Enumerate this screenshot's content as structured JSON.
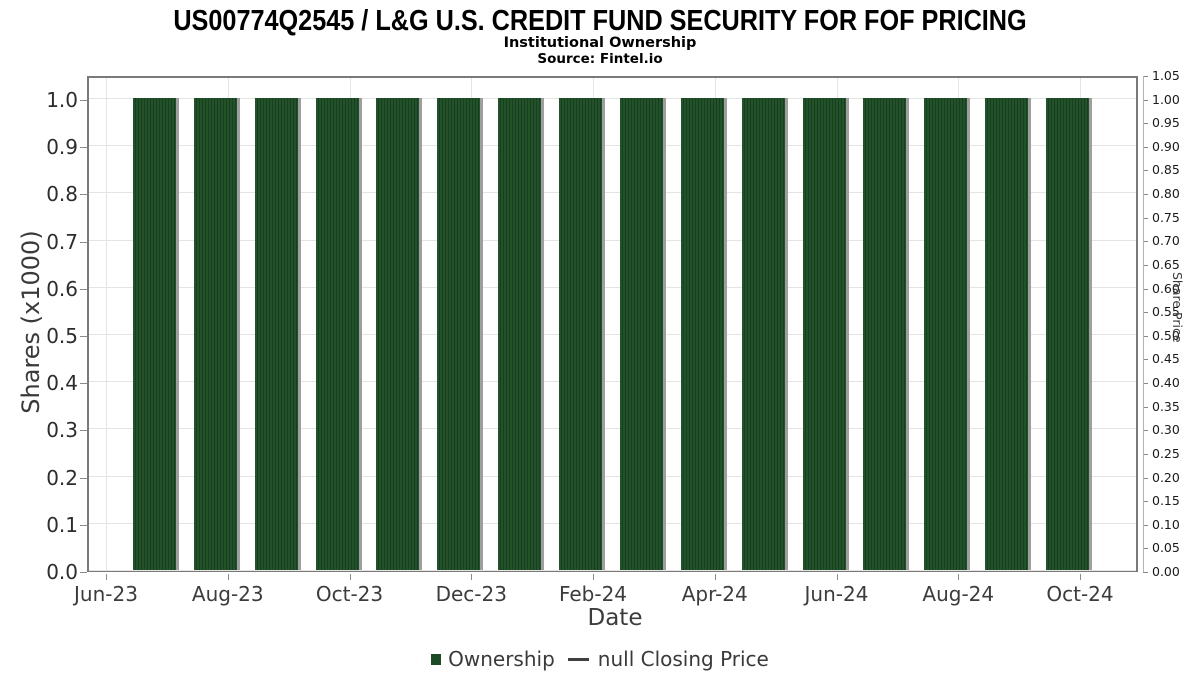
{
  "header": {
    "title": "US00774Q2545 / L&G U.S. CREDIT FUND SECURITY FOR FOF PRICING",
    "subtitle": "Institutional Ownership",
    "source": "Source: Fintel.io"
  },
  "legend": {
    "ownership_label": "Ownership",
    "price_label": "null Closing Price"
  },
  "colors": {
    "bar_green": "#1e4a26",
    "bar_stripe_dark": "#17401f",
    "bar_shadow_gray": "#9e9e9e",
    "gridline": "#e4e4e4",
    "plot_border": "#7a7a7a",
    "text_dark": "#3c3c3c"
  },
  "chart_data": {
    "type": "bar",
    "title": "US00774Q2545 / L&G U.S. CREDIT FUND SECURITY FOR FOF PRICING",
    "subtitle": "Institutional Ownership",
    "source": "Source: Fintel.io",
    "xlabel": "Date",
    "ylabel_left": "Shares (x1000)",
    "ylabel_right": "Share Price",
    "categories": [
      "Jul-23",
      "Aug-23",
      "Sep-23",
      "Oct-23",
      "Nov-23",
      "Dec-23",
      "Jan-24",
      "Feb-24",
      "Mar-24",
      "Apr-24",
      "May-24",
      "Jun-24",
      "Jul-24",
      "Aug-24",
      "Sep-24",
      "Oct-24"
    ],
    "series": [
      {
        "name": "Ownership",
        "type": "bar",
        "axis": "left",
        "values": [
          1.0,
          1.0,
          1.0,
          1.0,
          1.0,
          1.0,
          1.0,
          1.0,
          1.0,
          1.0,
          1.0,
          1.0,
          1.0,
          1.0,
          1.0,
          1.0
        ]
      },
      {
        "name": "null Closing Price",
        "type": "line",
        "axis": "right",
        "values": []
      }
    ],
    "x_tick_labels": [
      "Jun-23",
      "Aug-23",
      "Oct-23",
      "Dec-23",
      "Feb-24",
      "Apr-24",
      "Jun-24",
      "Aug-24",
      "Oct-24"
    ],
    "left_axis": {
      "label": "Shares (x1000)",
      "ticks": [
        "1.0",
        "0.9",
        "0.8",
        "0.7",
        "0.6",
        "0.5",
        "0.4",
        "0.3",
        "0.2",
        "0.1",
        "0.0"
      ],
      "range": [
        0,
        1.05
      ]
    },
    "right_axis": {
      "label": "Share Price",
      "ticks": [
        "1.05",
        "1.00",
        "0.95",
        "0.90",
        "0.85",
        "0.80",
        "0.75",
        "0.70",
        "0.65",
        "0.60",
        "0.55",
        "0.50",
        "0.45",
        "0.40",
        "0.35",
        "0.30",
        "0.25",
        "0.20",
        "0.15",
        "0.10",
        "0.05",
        "0.00"
      ],
      "range": [
        0,
        1.05
      ]
    },
    "grid": true,
    "legend_position": "bottom"
  }
}
